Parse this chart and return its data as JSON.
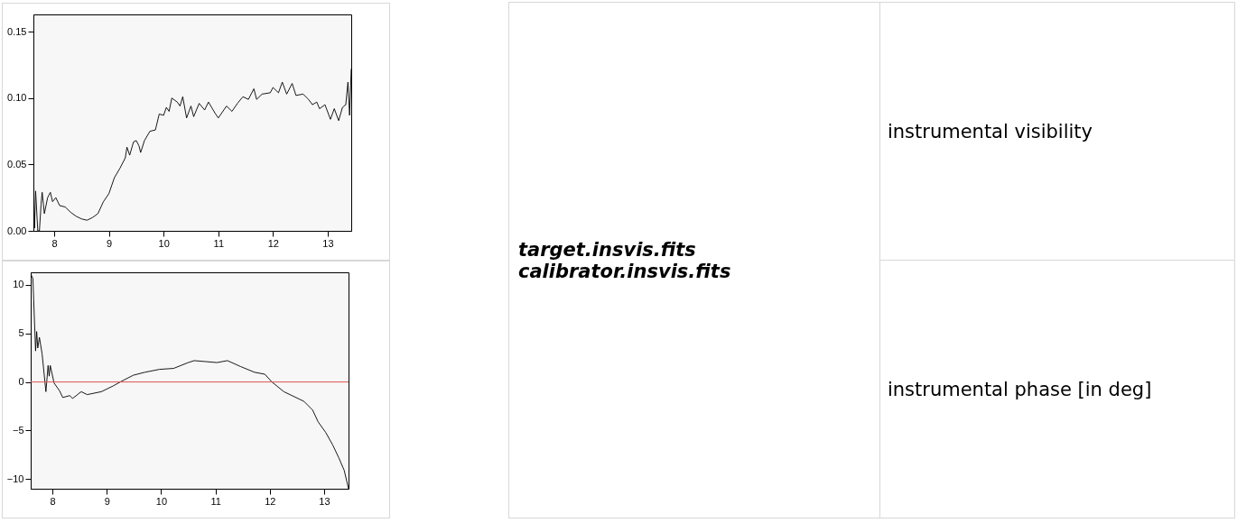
{
  "chart_data": [
    {
      "type": "line",
      "xlim": [
        7.62,
        13.43
      ],
      "ylim": [
        0,
        0.163
      ],
      "xticks": [
        8,
        9,
        10,
        11,
        12,
        13
      ],
      "yticks": [
        {
          "value": 0,
          "label": "0.00"
        },
        {
          "value": 0.05,
          "label": "0.05"
        },
        {
          "value": 0.1,
          "label": "0.10"
        },
        {
          "value": 0.15,
          "label": "0.15"
        }
      ],
      "grid": false,
      "series": [
        {
          "color": "#000000",
          "x": [
            7.62,
            7.64,
            7.66,
            7.7,
            7.73,
            7.76,
            7.78,
            7.82,
            7.88,
            7.93,
            7.97,
            8.03,
            8.1,
            8.2,
            8.3,
            8.4,
            8.5,
            8.6,
            8.7,
            8.8,
            8.9,
            9.0,
            9.1,
            9.2,
            9.3,
            9.33,
            9.38,
            9.45,
            9.5,
            9.55,
            9.58,
            9.65,
            9.75,
            9.85,
            9.92,
            10.0,
            10.05,
            10.1,
            10.15,
            10.25,
            10.3,
            10.35,
            10.42,
            10.5,
            10.55,
            10.65,
            10.75,
            10.82,
            10.95,
            11.0,
            11.15,
            11.25,
            11.35,
            11.45,
            11.55,
            11.65,
            11.7,
            11.8,
            11.95,
            12.0,
            12.1,
            12.17,
            12.25,
            12.35,
            12.42,
            12.55,
            12.65,
            12.72,
            12.8,
            12.85,
            12.95,
            13.05,
            13.12,
            13.2,
            13.27,
            13.33,
            13.37,
            13.4,
            13.43
          ],
          "values": [
            0.033,
            0.002,
            0.03,
            0.0,
            0.0,
            0.02,
            0.029,
            0.013,
            0.025,
            0.029,
            0.022,
            0.025,
            0.019,
            0.018,
            0.014,
            0.011,
            0.009,
            0.008,
            0.01,
            0.013,
            0.022,
            0.028,
            0.04,
            0.047,
            0.055,
            0.063,
            0.057,
            0.067,
            0.068,
            0.064,
            0.059,
            0.068,
            0.075,
            0.076,
            0.088,
            0.087,
            0.093,
            0.09,
            0.1,
            0.097,
            0.094,
            0.101,
            0.085,
            0.094,
            0.086,
            0.096,
            0.091,
            0.097,
            0.088,
            0.085,
            0.094,
            0.09,
            0.096,
            0.101,
            0.099,
            0.107,
            0.099,
            0.103,
            0.104,
            0.108,
            0.104,
            0.112,
            0.103,
            0.111,
            0.102,
            0.103,
            0.099,
            0.095,
            0.097,
            0.092,
            0.095,
            0.084,
            0.092,
            0.083,
            0.093,
            0.095,
            0.112,
            0.087,
            0.122
          ]
        }
      ]
    },
    {
      "type": "line",
      "xlim": [
        7.6,
        13.45
      ],
      "ylim": [
        -11,
        11.3
      ],
      "xticks": [
        8,
        9,
        10,
        11,
        12,
        13
      ],
      "yticks": [
        -10,
        -5,
        0,
        5,
        10
      ],
      "grid": false,
      "ref_lines": [
        {
          "axis": "y",
          "value": 0,
          "color": "#e05050"
        }
      ],
      "series": [
        {
          "color": "#000000",
          "x": [
            7.6,
            7.61,
            7.64,
            7.69,
            7.71,
            7.73,
            7.76,
            7.81,
            7.88,
            7.92,
            7.94,
            7.96,
            8.03,
            8.13,
            8.19,
            8.32,
            8.37,
            8.53,
            8.64,
            8.9,
            9.12,
            9.28,
            9.49,
            9.7,
            9.97,
            10.23,
            10.5,
            10.61,
            10.82,
            11.03,
            11.22,
            11.46,
            11.72,
            11.91,
            12.04,
            12.26,
            12.52,
            12.63,
            12.79,
            12.89,
            13.03,
            13.16,
            13.27,
            13.37,
            13.45
          ],
          "values": [
            6.4,
            11.0,
            10.7,
            3.2,
            5.2,
            3.5,
            4.6,
            2.9,
            -1.0,
            1.7,
            0.6,
            1.7,
            -0.1,
            -0.9,
            -1.6,
            -1.4,
            -1.7,
            -1.0,
            -1.3,
            -1.0,
            -0.4,
            0.1,
            0.7,
            1.0,
            1.3,
            1.4,
            2.0,
            2.2,
            2.1,
            2.0,
            2.2,
            1.6,
            1.0,
            0.8,
            0.0,
            -1.0,
            -1.7,
            -2.0,
            -2.9,
            -4.1,
            -5.2,
            -6.5,
            -7.8,
            -9.1,
            -11.0
          ]
        }
      ]
    },
    {
      "type": "other",
      "annotations": [
        "target.insvis.fits",
        "calibrator.insvis.fits"
      ]
    },
    {
      "type": "other",
      "annotations": [
        "instrumental visibility",
        "instrumental phase [in deg]"
      ]
    }
  ]
}
